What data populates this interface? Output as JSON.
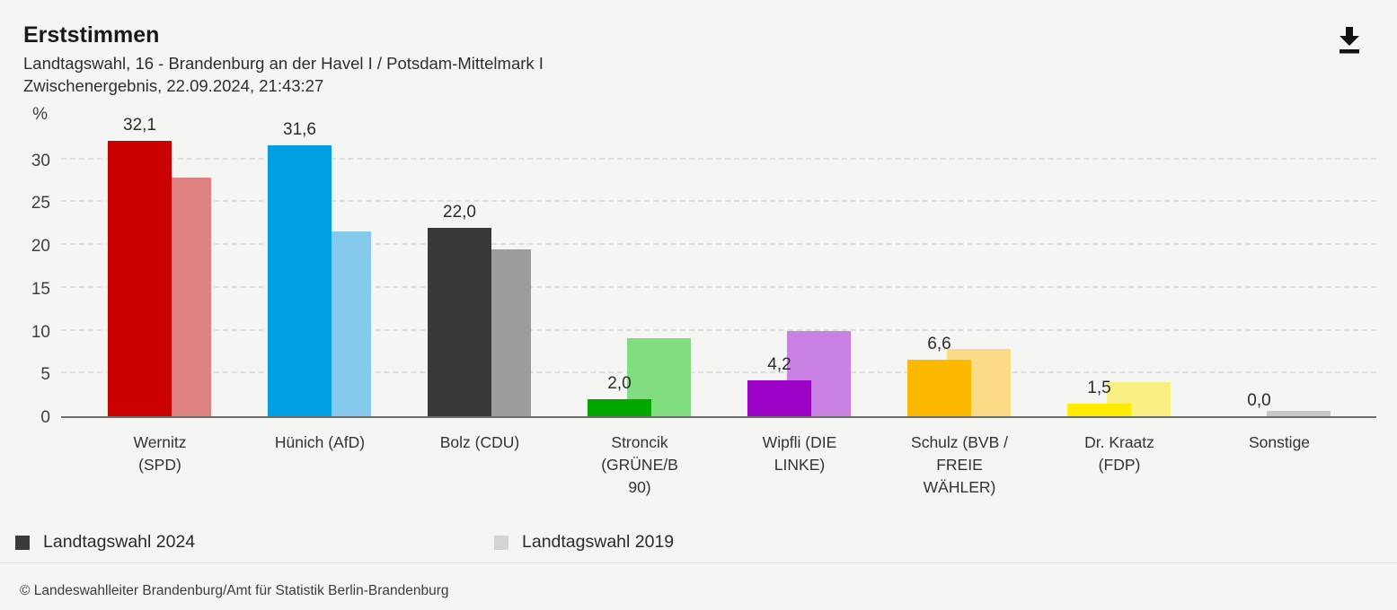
{
  "header": {
    "title": "Erststimmen",
    "subtitle": "Landtagswahl, 16 - Brandenburg an der Havel I / Potsdam-Mittelmark I",
    "status_line": "Zwischenergebnis, 22.09.2024, 21:43:27"
  },
  "toolbar": {
    "download_icon": "download-icon"
  },
  "chart_data": {
    "type": "bar",
    "title": "Erststimmen",
    "ylabel": "%",
    "ylim": [
      0,
      35
    ],
    "yticks": [
      0,
      5,
      10,
      15,
      20,
      25,
      30
    ],
    "grid": "horizontal-dashed",
    "legend_position": "bottom",
    "categories": [
      "Wernitz (SPD)",
      "Hünich (AfD)",
      "Bolz (CDU)",
      "Stroncik (GRÜNE/B 90)",
      "Wipfli (DIE LINKE)",
      "Schulz (BVB / FREIE WÄHLER)",
      "Dr. Kraatz (FDP)",
      "Sonstige"
    ],
    "category_label_lines": [
      [
        "Wernitz",
        "(SPD)"
      ],
      [
        "Hünich (AfD)"
      ],
      [
        "Bolz (CDU)"
      ],
      [
        "Stroncik",
        "(GRÜNE/B",
        "90)"
      ],
      [
        "Wipfli (DIE",
        "LINKE)"
      ],
      [
        "Schulz (BVB /",
        "FREIE",
        "WÄHLER)"
      ],
      [
        "Dr. Kraatz",
        "(FDP)"
      ],
      [
        "Sonstige"
      ]
    ],
    "series": [
      {
        "name": "Landtagswahl 2024",
        "values": [
          32.1,
          31.6,
          22.0,
          2.0,
          4.2,
          6.6,
          1.5,
          0.0
        ],
        "value_labels": [
          "32,1",
          "31,6",
          "22,0",
          "2,0",
          "4,2",
          "6,6",
          "1,5",
          "0,0"
        ],
        "colors": [
          "#cb0000",
          "#009ee3",
          "#383838",
          "#00a800",
          "#9b00c5",
          "#fcb900",
          "#ffec00",
          "#a8a8a8"
        ]
      },
      {
        "name": "Landtagswahl 2019",
        "values_estimated_from_gridlines": [
          27.9,
          21.6,
          19.5,
          9.1,
          10.0,
          7.9,
          4.0,
          0.6
        ],
        "colors": [
          "#de8181",
          "#85c9ec",
          "#9c9c9c",
          "#80dd80",
          "#c981e3",
          "#fbdb85",
          "#f8f083",
          "#c7c7c7"
        ]
      }
    ]
  },
  "legend": {
    "items": [
      {
        "label": "Landtagswahl 2024",
        "color": "#3a3a3a"
      },
      {
        "label": "Landtagswahl 2019",
        "color": "#d4d4d4"
      }
    ]
  },
  "footer": {
    "copyright": "© Landeswahlleiter Brandenburg/Amt für Statistik Berlin-Brandenburg"
  }
}
